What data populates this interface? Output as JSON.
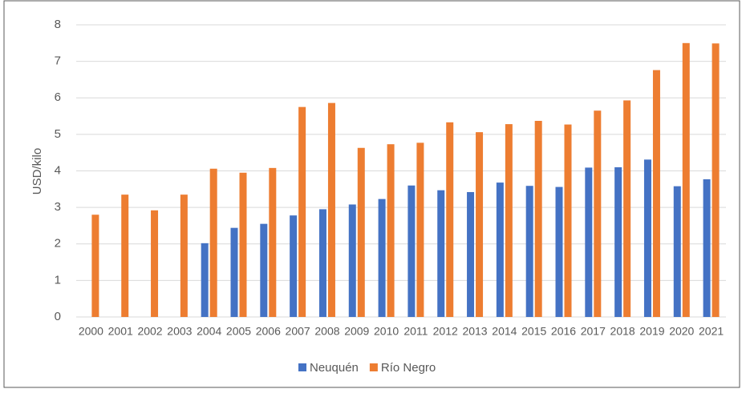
{
  "chart_data": {
    "type": "bar",
    "y_label": "USD/kilo",
    "categories": [
      "2000",
      "2001",
      "2002",
      "2003",
      "2004",
      "2005",
      "2006",
      "2007",
      "2008",
      "2009",
      "2010",
      "2011",
      "2012",
      "2013",
      "2014",
      "2015",
      "2016",
      "2017",
      "2018",
      "2019",
      "2020",
      "2021"
    ],
    "series": [
      {
        "name": "Neuquén",
        "color": "#4472c4",
        "values": [
          null,
          null,
          null,
          null,
          2.02,
          2.44,
          2.55,
          2.78,
          2.95,
          3.08,
          3.23,
          3.6,
          3.47,
          3.42,
          3.68,
          3.59,
          3.56,
          4.09,
          4.1,
          4.31,
          3.58,
          3.77
        ]
      },
      {
        "name": "Río Negro",
        "color": "#ed7d31",
        "values": [
          2.8,
          3.35,
          2.92,
          3.35,
          4.06,
          3.95,
          4.08,
          5.75,
          5.86,
          4.63,
          4.73,
          4.77,
          5.33,
          5.06,
          5.28,
          5.37,
          5.27,
          5.65,
          5.93,
          6.76,
          7.5,
          7.49
        ]
      }
    ],
    "ylim": [
      0,
      8
    ],
    "yticks": [
      0,
      1,
      2,
      3,
      4,
      5,
      6,
      7,
      8
    ],
    "grid": true,
    "legend": "bottom"
  }
}
